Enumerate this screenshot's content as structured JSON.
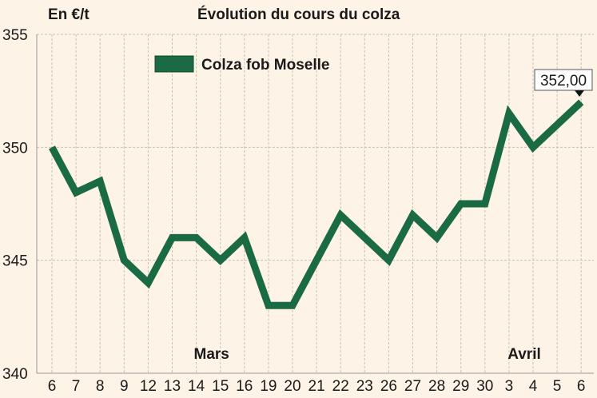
{
  "chart_data": {
    "type": "line",
    "title": "Évolution du cours du colza",
    "unit_label": "En €/t",
    "ylim": [
      340,
      355
    ],
    "y_ticks": [
      340,
      345,
      350,
      355
    ],
    "categories": [
      "6",
      "7",
      "8",
      "9",
      "12",
      "13",
      "14",
      "15",
      "16",
      "19",
      "20",
      "21",
      "22",
      "23",
      "26",
      "27",
      "28",
      "29",
      "30",
      "3",
      "4",
      "5",
      "6"
    ],
    "month_labels": [
      {
        "text": "Mars",
        "category_index": 7
      },
      {
        "text": "Avril",
        "category_index": 20
      }
    ],
    "series": [
      {
        "name": "Colza fob Moselle",
        "color": "#1a6b43",
        "values": [
          350,
          348,
          348.5,
          345,
          344,
          346,
          346,
          345,
          346,
          343,
          343,
          345,
          347,
          346,
          345,
          347,
          346,
          347.5,
          347.5,
          351.5,
          350,
          351,
          352
        ]
      }
    ],
    "last_value_label": "352,00",
    "grid": true,
    "legend_position": "top-left"
  }
}
